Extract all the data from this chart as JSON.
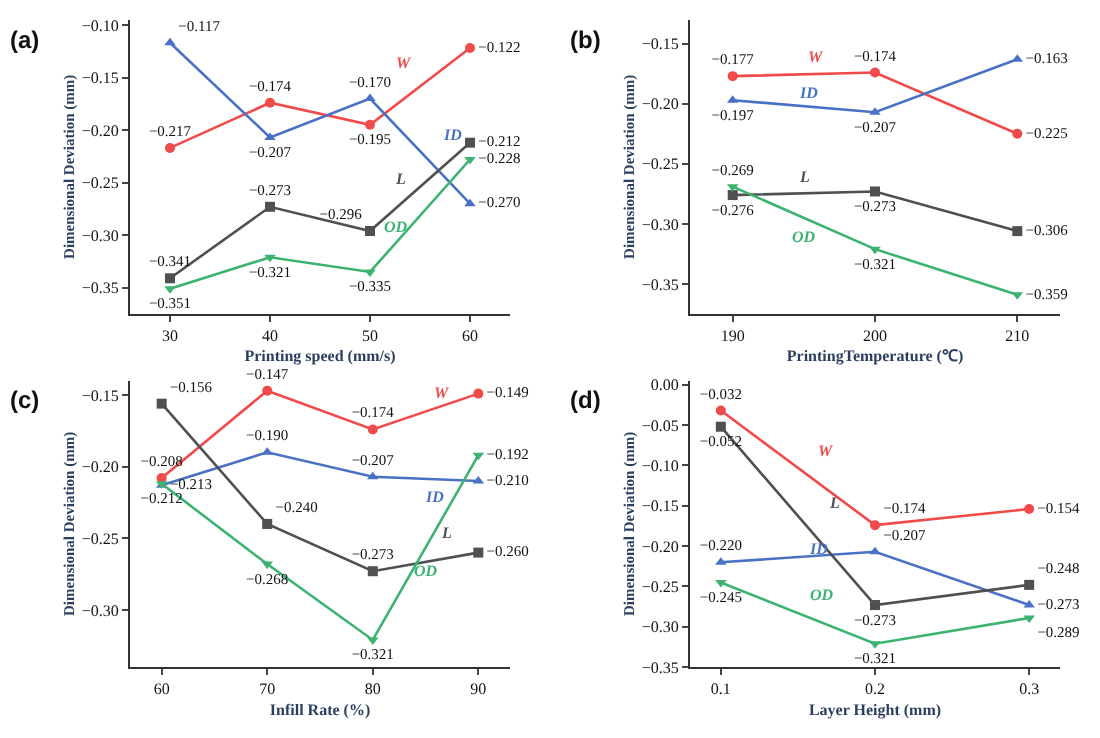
{
  "chart_data": [
    {
      "type": "line",
      "title": "(a)",
      "xlabel": "Printing speed (mm/s)",
      "ylabel": "Dimensional Deviation (mm)",
      "x": [
        30,
        40,
        50,
        60
      ],
      "xlim": [
        26,
        64
      ],
      "xticks": [
        30,
        40,
        50,
        60
      ],
      "ylim": [
        -0.375,
        -0.095
      ],
      "yticks": [
        {
          "value": -0.35,
          "label": "−0.35"
        },
        {
          "value": -0.3,
          "label": "−0.30"
        },
        {
          "value": -0.25,
          "label": "−0.25"
        },
        {
          "value": -0.2,
          "label": "−0.20"
        },
        {
          "value": -0.15,
          "label": "−0.15"
        },
        {
          "value": -0.1,
          "label": "−0.10"
        }
      ],
      "series": [
        {
          "name": "W",
          "color": "#f04a4a",
          "marker": "circle",
          "values": [
            -0.217,
            -0.174,
            -0.195,
            -0.122
          ],
          "value_labels": [
            "−0.217",
            "−0.174",
            "−0.195",
            "−0.122"
          ]
        },
        {
          "name": "ID",
          "color": "#4a72c4",
          "marker": "triangle",
          "values": [
            -0.117,
            -0.207,
            -0.17,
            -0.27
          ],
          "value_labels": [
            "−0.117",
            "−0.207",
            "−0.170",
            "−0.270"
          ]
        },
        {
          "name": "L",
          "color": "#505050",
          "marker": "square",
          "values": [
            -0.341,
            -0.273,
            -0.296,
            -0.212
          ],
          "value_labels": [
            "−0.341",
            "−0.273",
            "−0.296",
            "−0.212"
          ]
        },
        {
          "name": "OD",
          "color": "#3cb371",
          "marker": "triangle-down",
          "values": [
            -0.351,
            -0.321,
            -0.335,
            -0.228
          ],
          "value_labels": [
            "−0.351",
            "−0.321",
            "−0.335",
            "−0.228"
          ]
        }
      ]
    },
    {
      "type": "line",
      "title": "(b)",
      "xlabel": "PrintingTemperature (℃)",
      "ylabel": "Dimensional Deviation (mm)",
      "x": [
        190,
        200,
        210
      ],
      "xlim": [
        187,
        213
      ],
      "xticks": [
        190,
        200,
        210
      ],
      "ylim": [
        -0.375,
        -0.13
      ],
      "yticks": [
        {
          "value": -0.35,
          "label": "−0.35"
        },
        {
          "value": -0.3,
          "label": "−0.30"
        },
        {
          "value": -0.25,
          "label": "−0.25"
        },
        {
          "value": -0.2,
          "label": "−0.20"
        },
        {
          "value": -0.15,
          "label": "−0.15"
        }
      ],
      "series": [
        {
          "name": "W",
          "color": "#f04a4a",
          "marker": "circle",
          "values": [
            -0.177,
            -0.174,
            -0.225
          ],
          "value_labels": [
            "−0.177",
            "−0.174",
            "−0.225"
          ]
        },
        {
          "name": "ID",
          "color": "#4a72c4",
          "marker": "triangle",
          "values": [
            -0.197,
            -0.207,
            -0.163
          ],
          "value_labels": [
            "−0.197",
            "−0.207",
            "−0.163"
          ]
        },
        {
          "name": "L",
          "color": "#505050",
          "marker": "square",
          "values": [
            -0.276,
            -0.273,
            -0.306
          ],
          "value_labels": [
            "−0.276",
            "−0.273",
            "−0.306"
          ]
        },
        {
          "name": "OD",
          "color": "#3cb371",
          "marker": "triangle-down",
          "values": [
            -0.269,
            -0.321,
            -0.359
          ],
          "value_labels": [
            "−0.269",
            "−0.321",
            "−0.359"
          ]
        }
      ]
    },
    {
      "type": "line",
      "title": "(c)",
      "xlabel": "Infill Rate (%)",
      "ylabel": "Dimensional Deviation (mm)",
      "x": [
        60,
        70,
        80,
        90
      ],
      "xlim": [
        57,
        93
      ],
      "xticks": [
        60,
        70,
        80,
        90
      ],
      "ylim": [
        -0.34,
        -0.14
      ],
      "yticks": [
        {
          "value": -0.3,
          "label": "−0.30"
        },
        {
          "value": -0.25,
          "label": "−0.25"
        },
        {
          "value": -0.2,
          "label": "−0.20"
        },
        {
          "value": -0.15,
          "label": "−0.15"
        }
      ],
      "series": [
        {
          "name": "W",
          "color": "#f04a4a",
          "marker": "circle",
          "values": [
            -0.208,
            -0.147,
            -0.174,
            -0.149
          ],
          "value_labels": [
            "−0.208",
            "−0.147",
            "−0.174",
            "−0.149"
          ]
        },
        {
          "name": "ID",
          "color": "#4a72c4",
          "marker": "triangle",
          "values": [
            -0.213,
            -0.19,
            -0.207,
            -0.21
          ],
          "value_labels": [
            "−0.213",
            "−0.190",
            "−0.207",
            "−0.210"
          ]
        },
        {
          "name": "L",
          "color": "#505050",
          "marker": "square",
          "values": [
            -0.156,
            -0.24,
            -0.273,
            -0.26
          ],
          "value_labels": [
            "−0.156",
            "−0.240",
            "−0.273",
            "−0.260"
          ]
        },
        {
          "name": "OD",
          "color": "#3cb371",
          "marker": "triangle-down",
          "values": [
            -0.212,
            -0.268,
            -0.321,
            -0.192
          ],
          "value_labels": [
            "−0.212",
            "−0.268",
            "−0.321",
            "−0.192"
          ]
        }
      ]
    },
    {
      "type": "line",
      "title": "(d)",
      "xlabel": "Layer Height (mm)",
      "ylabel": "Dimensional Deviation (mm)",
      "x": [
        0.1,
        0.2,
        0.3
      ],
      "xlim": [
        0.08,
        0.32
      ],
      "xticks": [
        0.1,
        0.2,
        0.3
      ],
      "ylim": [
        -0.35,
        0.005
      ],
      "yticks": [
        {
          "value": -0.35,
          "label": "−0.35"
        },
        {
          "value": -0.3,
          "label": "−0.30"
        },
        {
          "value": -0.25,
          "label": "−0.25"
        },
        {
          "value": -0.2,
          "label": "−0.20"
        },
        {
          "value": -0.15,
          "label": "−0.15"
        },
        {
          "value": -0.1,
          "label": "−0.10"
        },
        {
          "value": -0.05,
          "label": "−0.05"
        },
        {
          "value": 0,
          "label": "0.00"
        }
      ],
      "series": [
        {
          "name": "W",
          "color": "#f04a4a",
          "marker": "circle",
          "values": [
            -0.032,
            -0.174,
            -0.154
          ],
          "value_labels": [
            "−0.032",
            "−0.174",
            "−0.154"
          ]
        },
        {
          "name": "ID",
          "color": "#4a72c4",
          "marker": "triangle",
          "values": [
            -0.22,
            -0.207,
            -0.273
          ],
          "value_labels": [
            "−0.220",
            "−0.207",
            "−0.273"
          ]
        },
        {
          "name": "L",
          "color": "#505050",
          "marker": "square",
          "values": [
            -0.052,
            -0.273,
            -0.248
          ],
          "value_labels": [
            "−0.052",
            "−0.273",
            "−0.248"
          ]
        },
        {
          "name": "OD",
          "color": "#3cb371",
          "marker": "triangle-down",
          "values": [
            -0.245,
            -0.321,
            -0.289
          ],
          "value_labels": [
            "−0.245",
            "−0.321",
            "−0.289"
          ]
        }
      ]
    }
  ]
}
